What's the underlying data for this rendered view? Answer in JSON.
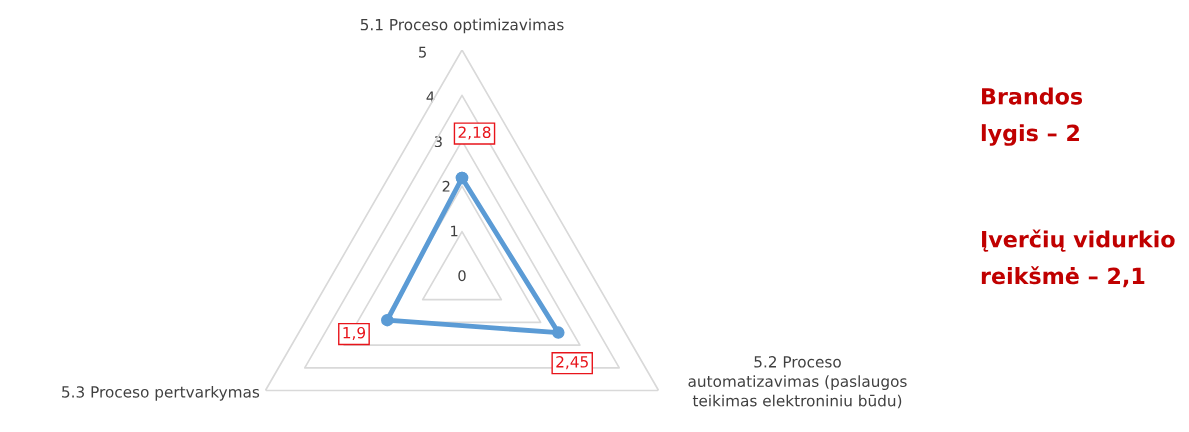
{
  "chart_data": {
    "type": "radar",
    "categories": [
      "5.1 Proceso optimizavimas",
      "5.2 Proceso\nautomatizavimas (paslaugos\nteikimas elektroniniu būdu)",
      "5.3 Proceso pertvarkymas"
    ],
    "series": [
      {
        "color": "#5b9bd5",
        "values": [
          2.18,
          2.45,
          1.9
        ],
        "value_labels": [
          "2,18",
          "2,45",
          "1,9"
        ]
      }
    ],
    "ylim": [
      0,
      5
    ],
    "yticks": [
      0,
      1,
      2,
      3,
      4,
      5
    ],
    "grid": true,
    "marker": "circle",
    "line_style": "solid",
    "annotations": [
      "Brandos\nlygis – 2",
      "Įverčių vidurkio\nreikšmė – 2,1"
    ]
  }
}
